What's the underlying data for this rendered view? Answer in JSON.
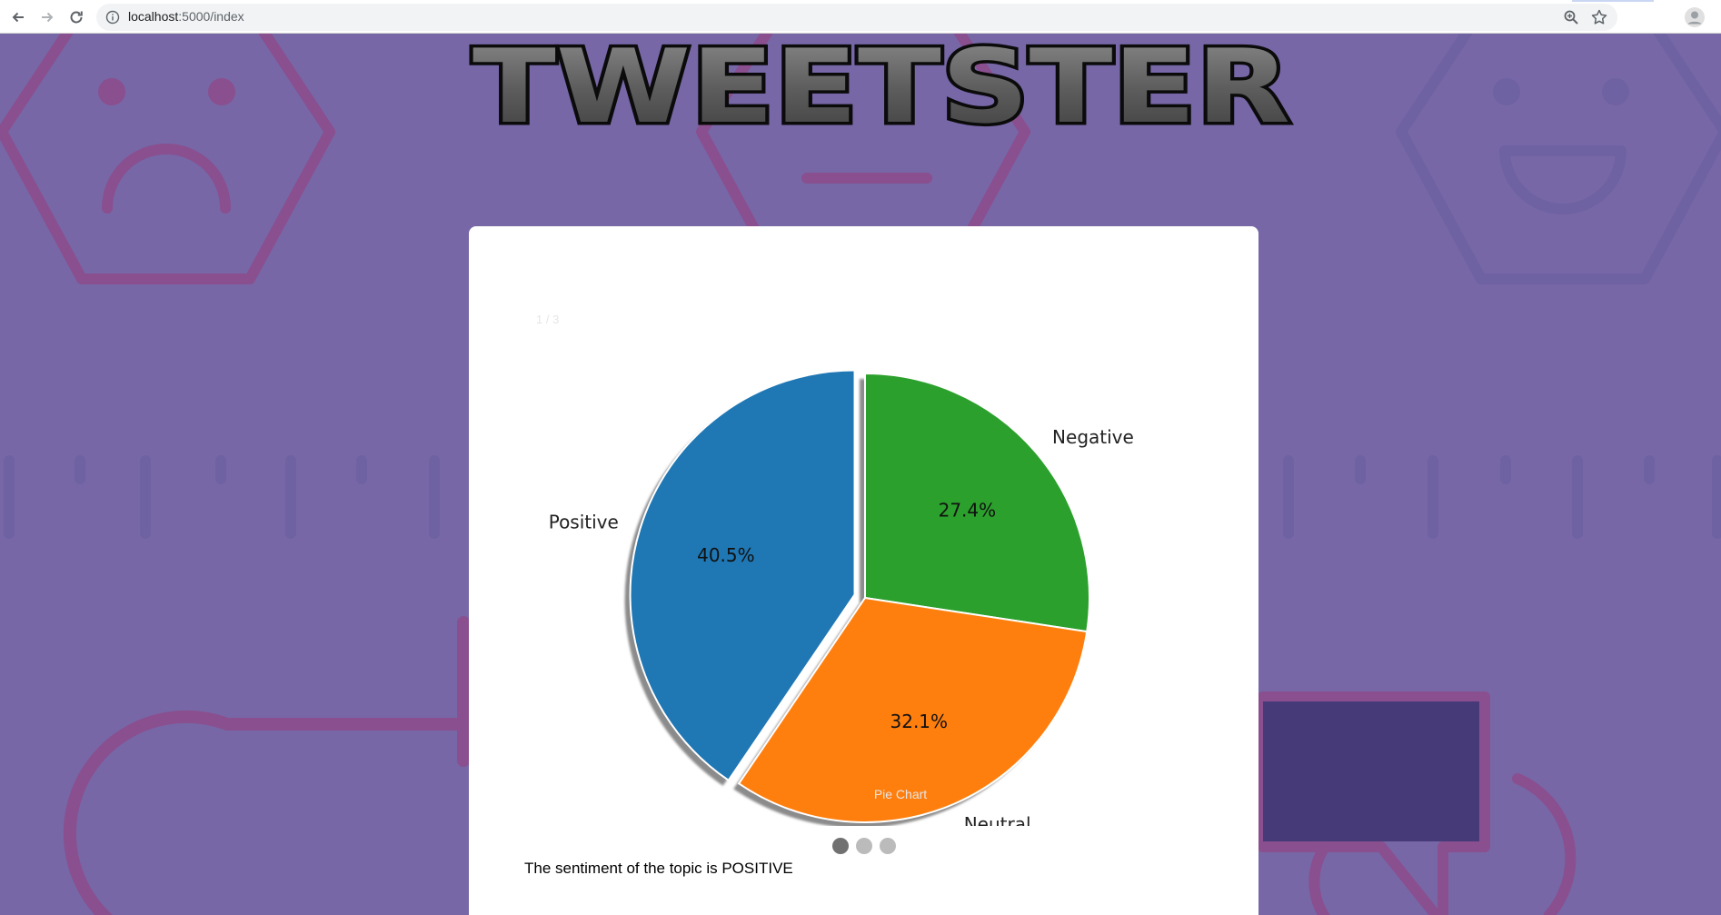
{
  "browser": {
    "url_host": "localhost",
    "url_path": ":5000/index"
  },
  "app": {
    "title": "TWEETSTER"
  },
  "carousel": {
    "counter": "1 / 3",
    "caption": "Pie Chart",
    "slides": 3,
    "active_slide": 1
  },
  "sentiment": {
    "text": "The sentiment of the topic is POSITIVE"
  },
  "colors": {
    "background": "#7767a7",
    "positive": "#1f77b4",
    "neutral": "#ff7f0e",
    "negative": "#2ca02c"
  },
  "chart_data": {
    "type": "pie",
    "slices": [
      {
        "label": "Negative",
        "value": 27.4,
        "pct_label": "27.4%",
        "color": "#2ca02c",
        "exploded": false
      },
      {
        "label": "Neutral",
        "value": 32.1,
        "pct_label": "32.1%",
        "color": "#ff7f0e",
        "exploded": false
      },
      {
        "label": "Positive",
        "value": 40.5,
        "pct_label": "40.5%",
        "color": "#1f77b4",
        "exploded": true
      }
    ],
    "start": "top",
    "direction": "clockwise",
    "shadow": true
  }
}
